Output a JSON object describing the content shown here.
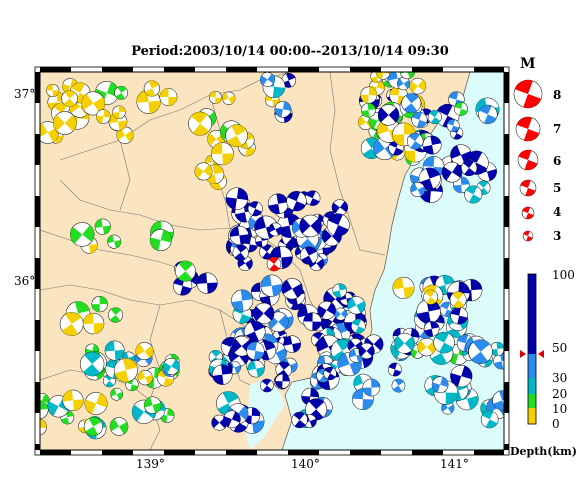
{
  "title": "Period:2003/10/14 00:00--2013/10/14 09:30",
  "map": {
    "lat_ticks": [
      "37°",
      "36°"
    ],
    "lon_ticks": [
      "139°",
      "140°",
      "141°"
    ],
    "land_color": "#fbe4c0",
    "sea_color": "#dcfcfc",
    "main_event_color": "#ff0000"
  },
  "magnitude_legend": {
    "header": "M",
    "levels": [
      "8",
      "7",
      "6",
      "5",
      "4",
      "3"
    ],
    "color": "#ff0000"
  },
  "depth_legend": {
    "labels": [
      "100",
      "50",
      "30",
      "20",
      "10",
      "0"
    ],
    "title": "Depth(km)",
    "bands": [
      {
        "range": "0-10",
        "color": "#f5d000"
      },
      {
        "range": "10-20",
        "color": "#22dd22"
      },
      {
        "range": "20-30",
        "color": "#00b8c8"
      },
      {
        "range": "30-50",
        "color": "#2b8cee"
      },
      {
        "range": "50-100",
        "color": "#0000aa"
      }
    ],
    "marker_depth": 50
  }
}
